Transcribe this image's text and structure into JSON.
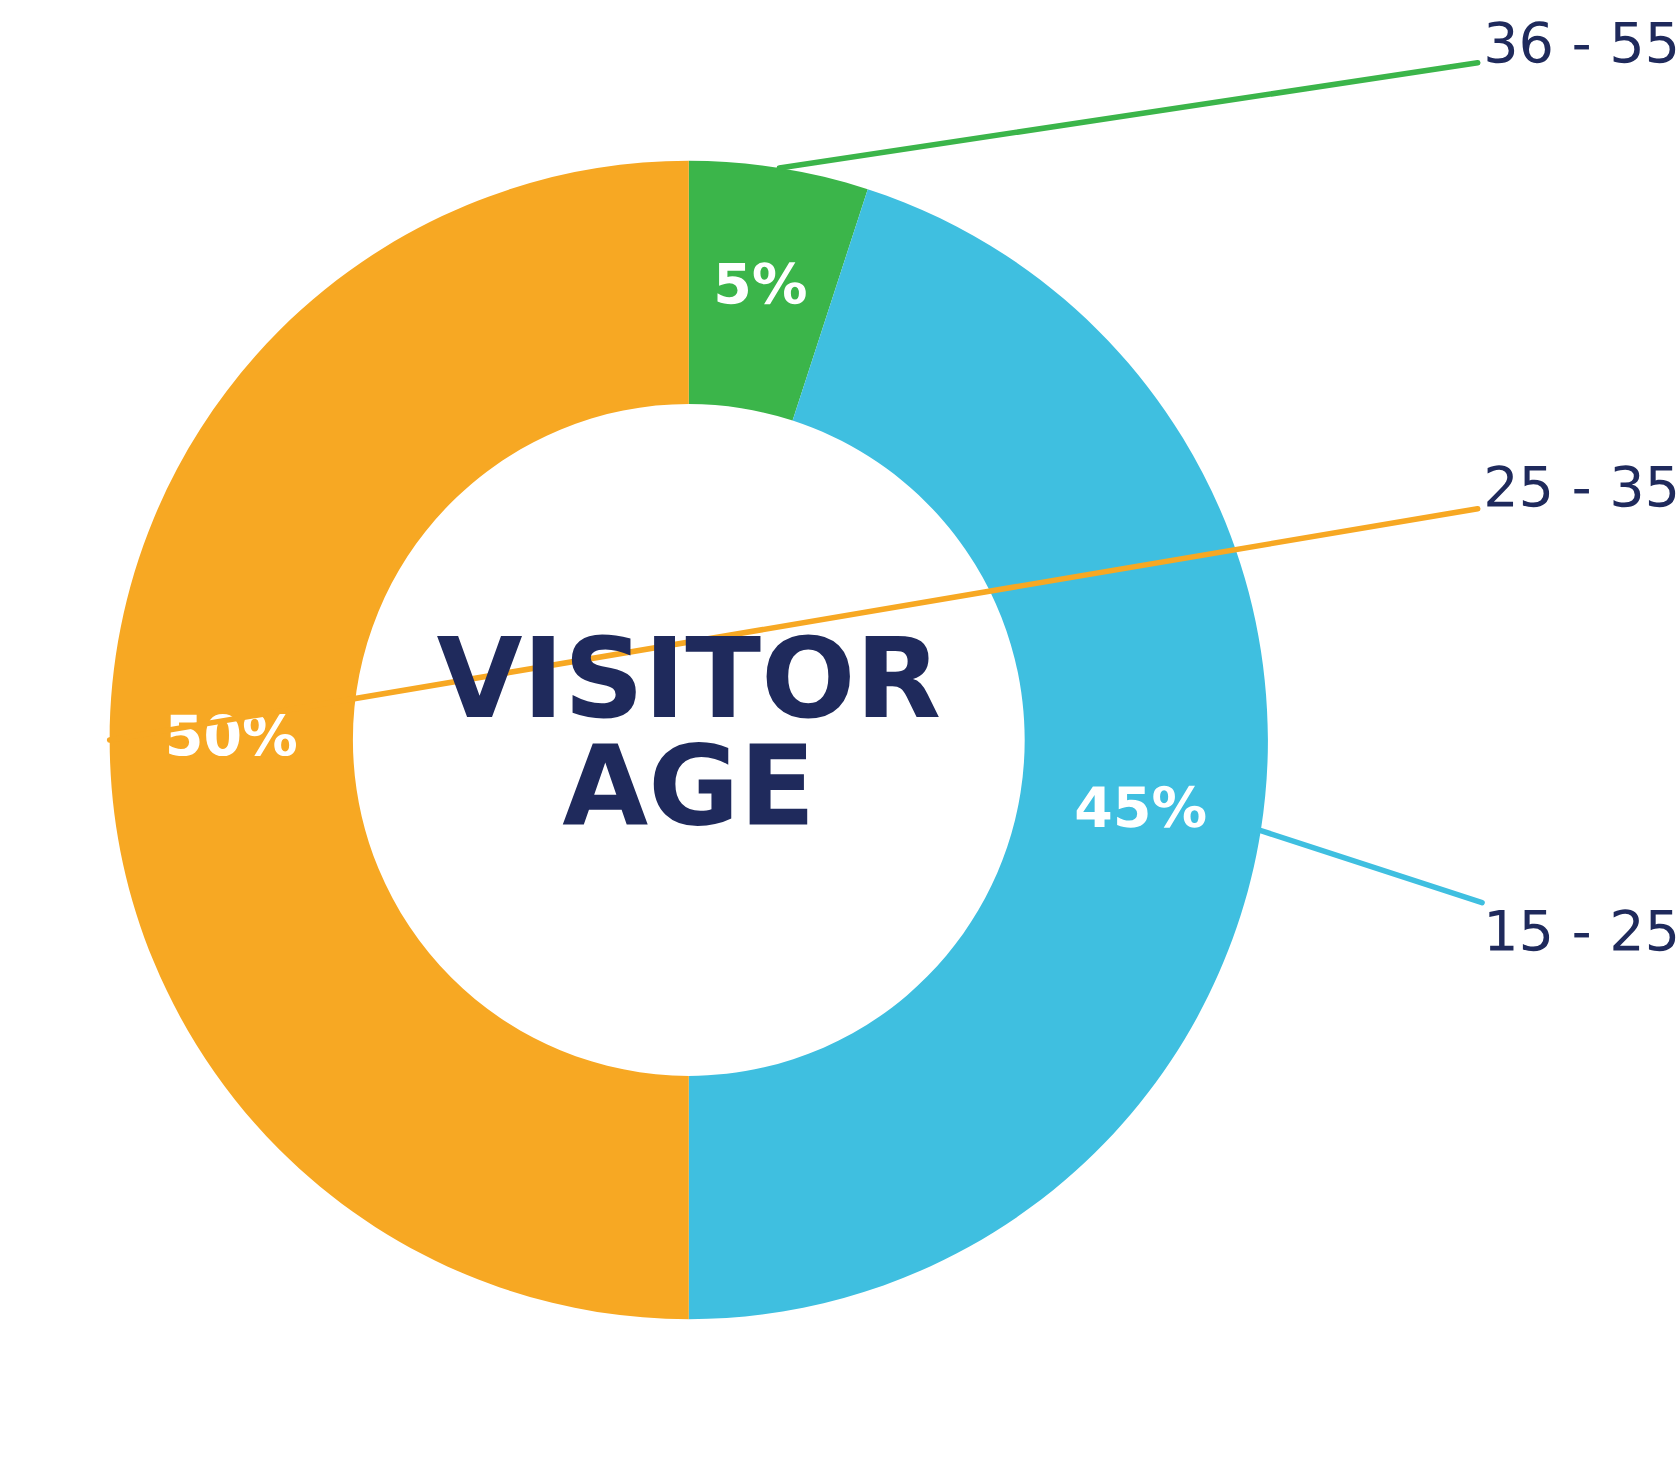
{
  "chart_data": {
    "type": "donut",
    "title": "VISITOR AGE",
    "categories": [
      "36 - 55",
      "15 - 25",
      "25 - 35"
    ],
    "values": [
      5,
      45,
      50
    ],
    "value_labels": [
      "5%",
      "45%",
      "50%"
    ],
    "colors": [
      "#3bb54a",
      "#3fbfe0",
      "#f7a823"
    ]
  }
}
